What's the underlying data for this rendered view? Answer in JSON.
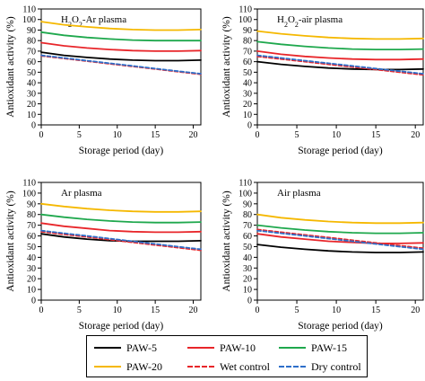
{
  "chart_data": [
    {
      "type": "line",
      "title": "H2O2-Ar plasma",
      "xlabel": "Storage period (day)",
      "ylabel": "Antioxidant activity (%)",
      "xlim": [
        0,
        21
      ],
      "ylim": [
        0,
        110
      ],
      "xticks": [
        0,
        5,
        10,
        15,
        20
      ],
      "yticks": [
        0,
        10,
        20,
        30,
        40,
        50,
        60,
        70,
        80,
        90,
        100,
        110
      ],
      "x": [
        0,
        3,
        6,
        9,
        12,
        15,
        18,
        21
      ],
      "series": [
        {
          "name": "PAW-5",
          "color": "#000000",
          "dashed": false,
          "values": [
            69,
            66,
            64,
            62.5,
            61.5,
            61,
            61,
            61.5
          ]
        },
        {
          "name": "PAW-10",
          "color": "#e8262a",
          "dashed": false,
          "values": [
            78,
            75,
            73,
            71.5,
            70.5,
            70,
            70,
            70.5
          ]
        },
        {
          "name": "PAW-15",
          "color": "#1fa84d",
          "dashed": false,
          "values": [
            88,
            85,
            83,
            81.5,
            80.5,
            80,
            80,
            80
          ]
        },
        {
          "name": "PAW-20",
          "color": "#f5b800",
          "dashed": false,
          "values": [
            98,
            95,
            93,
            91.5,
            90.5,
            90,
            90,
            90.5
          ]
        },
        {
          "name": "Wet control",
          "color": "#e8262a",
          "dashed": true,
          "values": [
            65.5,
            63,
            60.5,
            58,
            55.5,
            53,
            50.5,
            48
          ]
        },
        {
          "name": "Dry control",
          "color": "#2e6fc9",
          "dashed": true,
          "values": [
            66,
            63.5,
            61,
            58.5,
            56,
            53.5,
            51,
            48.5
          ]
        }
      ]
    },
    {
      "type": "line",
      "title": "H2O2-air plasma",
      "xlabel": "Storage period (day)",
      "ylabel": "Antioxidant activity (%)",
      "xlim": [
        0,
        21
      ],
      "ylim": [
        0,
        110
      ],
      "xticks": [
        0,
        5,
        10,
        15,
        20
      ],
      "yticks": [
        0,
        10,
        20,
        30,
        40,
        50,
        60,
        70,
        80,
        90,
        100,
        110
      ],
      "x": [
        0,
        3,
        6,
        9,
        12,
        15,
        18,
        21
      ],
      "series": [
        {
          "name": "PAW-5",
          "color": "#000000",
          "dashed": false,
          "values": [
            60,
            57.5,
            55.5,
            54,
            53,
            52.5,
            52.5,
            53
          ]
        },
        {
          "name": "PAW-10",
          "color": "#e8262a",
          "dashed": false,
          "values": [
            70,
            67,
            65,
            63.5,
            62.5,
            62,
            62,
            62.5
          ]
        },
        {
          "name": "PAW-15",
          "color": "#1fa84d",
          "dashed": false,
          "values": [
            79,
            76.5,
            74.5,
            73,
            72,
            71.5,
            71.5,
            72
          ]
        },
        {
          "name": "PAW-20",
          "color": "#f5b800",
          "dashed": false,
          "values": [
            89,
            86.5,
            84.5,
            83,
            82,
            81.5,
            81.5,
            82
          ]
        },
        {
          "name": "Wet control",
          "color": "#e8262a",
          "dashed": true,
          "values": [
            65,
            62.5,
            60,
            57.5,
            55,
            52.5,
            50,
            47.5
          ]
        },
        {
          "name": "Dry control",
          "color": "#2e6fc9",
          "dashed": true,
          "values": [
            66,
            63.5,
            61,
            58.5,
            56,
            53.5,
            51,
            48.5
          ]
        }
      ]
    },
    {
      "type": "line",
      "title": "Ar plasma",
      "xlabel": "Storage period (day)",
      "ylabel": "Antioxidant activity (%)",
      "xlim": [
        0,
        21
      ],
      "ylim": [
        0,
        110
      ],
      "xticks": [
        0,
        5,
        10,
        15,
        20
      ],
      "yticks": [
        0,
        10,
        20,
        30,
        40,
        50,
        60,
        70,
        80,
        90,
        100,
        110
      ],
      "x": [
        0,
        3,
        6,
        9,
        12,
        15,
        18,
        21
      ],
      "series": [
        {
          "name": "PAW-5",
          "color": "#000000",
          "dashed": false,
          "values": [
            62,
            59,
            57,
            55.5,
            55,
            55,
            55,
            55.5
          ]
        },
        {
          "name": "PAW-10",
          "color": "#e8262a",
          "dashed": false,
          "values": [
            72,
            69,
            67,
            65,
            64,
            63.5,
            63.5,
            64
          ]
        },
        {
          "name": "PAW-15",
          "color": "#1fa84d",
          "dashed": false,
          "values": [
            80,
            77.5,
            75.5,
            74,
            73,
            72.5,
            72.5,
            73
          ]
        },
        {
          "name": "PAW-20",
          "color": "#f5b800",
          "dashed": false,
          "values": [
            90,
            87.5,
            85.5,
            84,
            83,
            82.5,
            82.5,
            83
          ]
        },
        {
          "name": "Wet control",
          "color": "#e8262a",
          "dashed": true,
          "values": [
            64,
            61.5,
            59,
            56.5,
            54,
            51.5,
            49,
            46.5
          ]
        },
        {
          "name": "Dry control",
          "color": "#2e6fc9",
          "dashed": true,
          "values": [
            65,
            62.5,
            60,
            57.5,
            55,
            52.5,
            50,
            47.5
          ]
        }
      ]
    },
    {
      "type": "line",
      "title": "Air plasma",
      "xlabel": "Storage period (day)",
      "ylabel": "Antioxidant activity (%)",
      "xlim": [
        0,
        21
      ],
      "ylim": [
        0,
        110
      ],
      "xticks": [
        0,
        5,
        10,
        15,
        20
      ],
      "yticks": [
        0,
        10,
        20,
        30,
        40,
        50,
        60,
        70,
        80,
        90,
        100,
        110
      ],
      "x": [
        0,
        3,
        6,
        9,
        12,
        15,
        18,
        21
      ],
      "series": [
        {
          "name": "PAW-5",
          "color": "#000000",
          "dashed": false,
          "values": [
            52,
            49.5,
            47.5,
            46,
            45,
            44.5,
            44.5,
            45
          ]
        },
        {
          "name": "PAW-10",
          "color": "#e8262a",
          "dashed": false,
          "values": [
            62,
            59,
            57,
            55,
            54,
            53,
            53,
            53.5
          ]
        },
        {
          "name": "PAW-15",
          "color": "#1fa84d",
          "dashed": false,
          "values": [
            70,
            67.5,
            65.5,
            64,
            63,
            62.5,
            62.5,
            63
          ]
        },
        {
          "name": "PAW-20",
          "color": "#f5b800",
          "dashed": false,
          "values": [
            80,
            77,
            75,
            73.5,
            72.5,
            72,
            72,
            72.5
          ]
        },
        {
          "name": "Wet control",
          "color": "#e8262a",
          "dashed": true,
          "values": [
            66,
            63.5,
            61,
            58.5,
            56,
            53.5,
            51,
            48.5
          ]
        },
        {
          "name": "Dry control",
          "color": "#2e6fc9",
          "dashed": true,
          "values": [
            65,
            62.5,
            60,
            57.5,
            55,
            52.5,
            50,
            47.5
          ]
        }
      ]
    }
  ],
  "legend": [
    {
      "label": "PAW-5",
      "color": "#000000",
      "dashed": false
    },
    {
      "label": "PAW-10",
      "color": "#e8262a",
      "dashed": false
    },
    {
      "label": "PAW-15",
      "color": "#1fa84d",
      "dashed": false
    },
    {
      "label": "PAW-20",
      "color": "#f5b800",
      "dashed": false
    },
    {
      "label": "Wet control",
      "color": "#e8262a",
      "dashed": true
    },
    {
      "label": "Dry control",
      "color": "#2e6fc9",
      "dashed": true
    }
  ]
}
